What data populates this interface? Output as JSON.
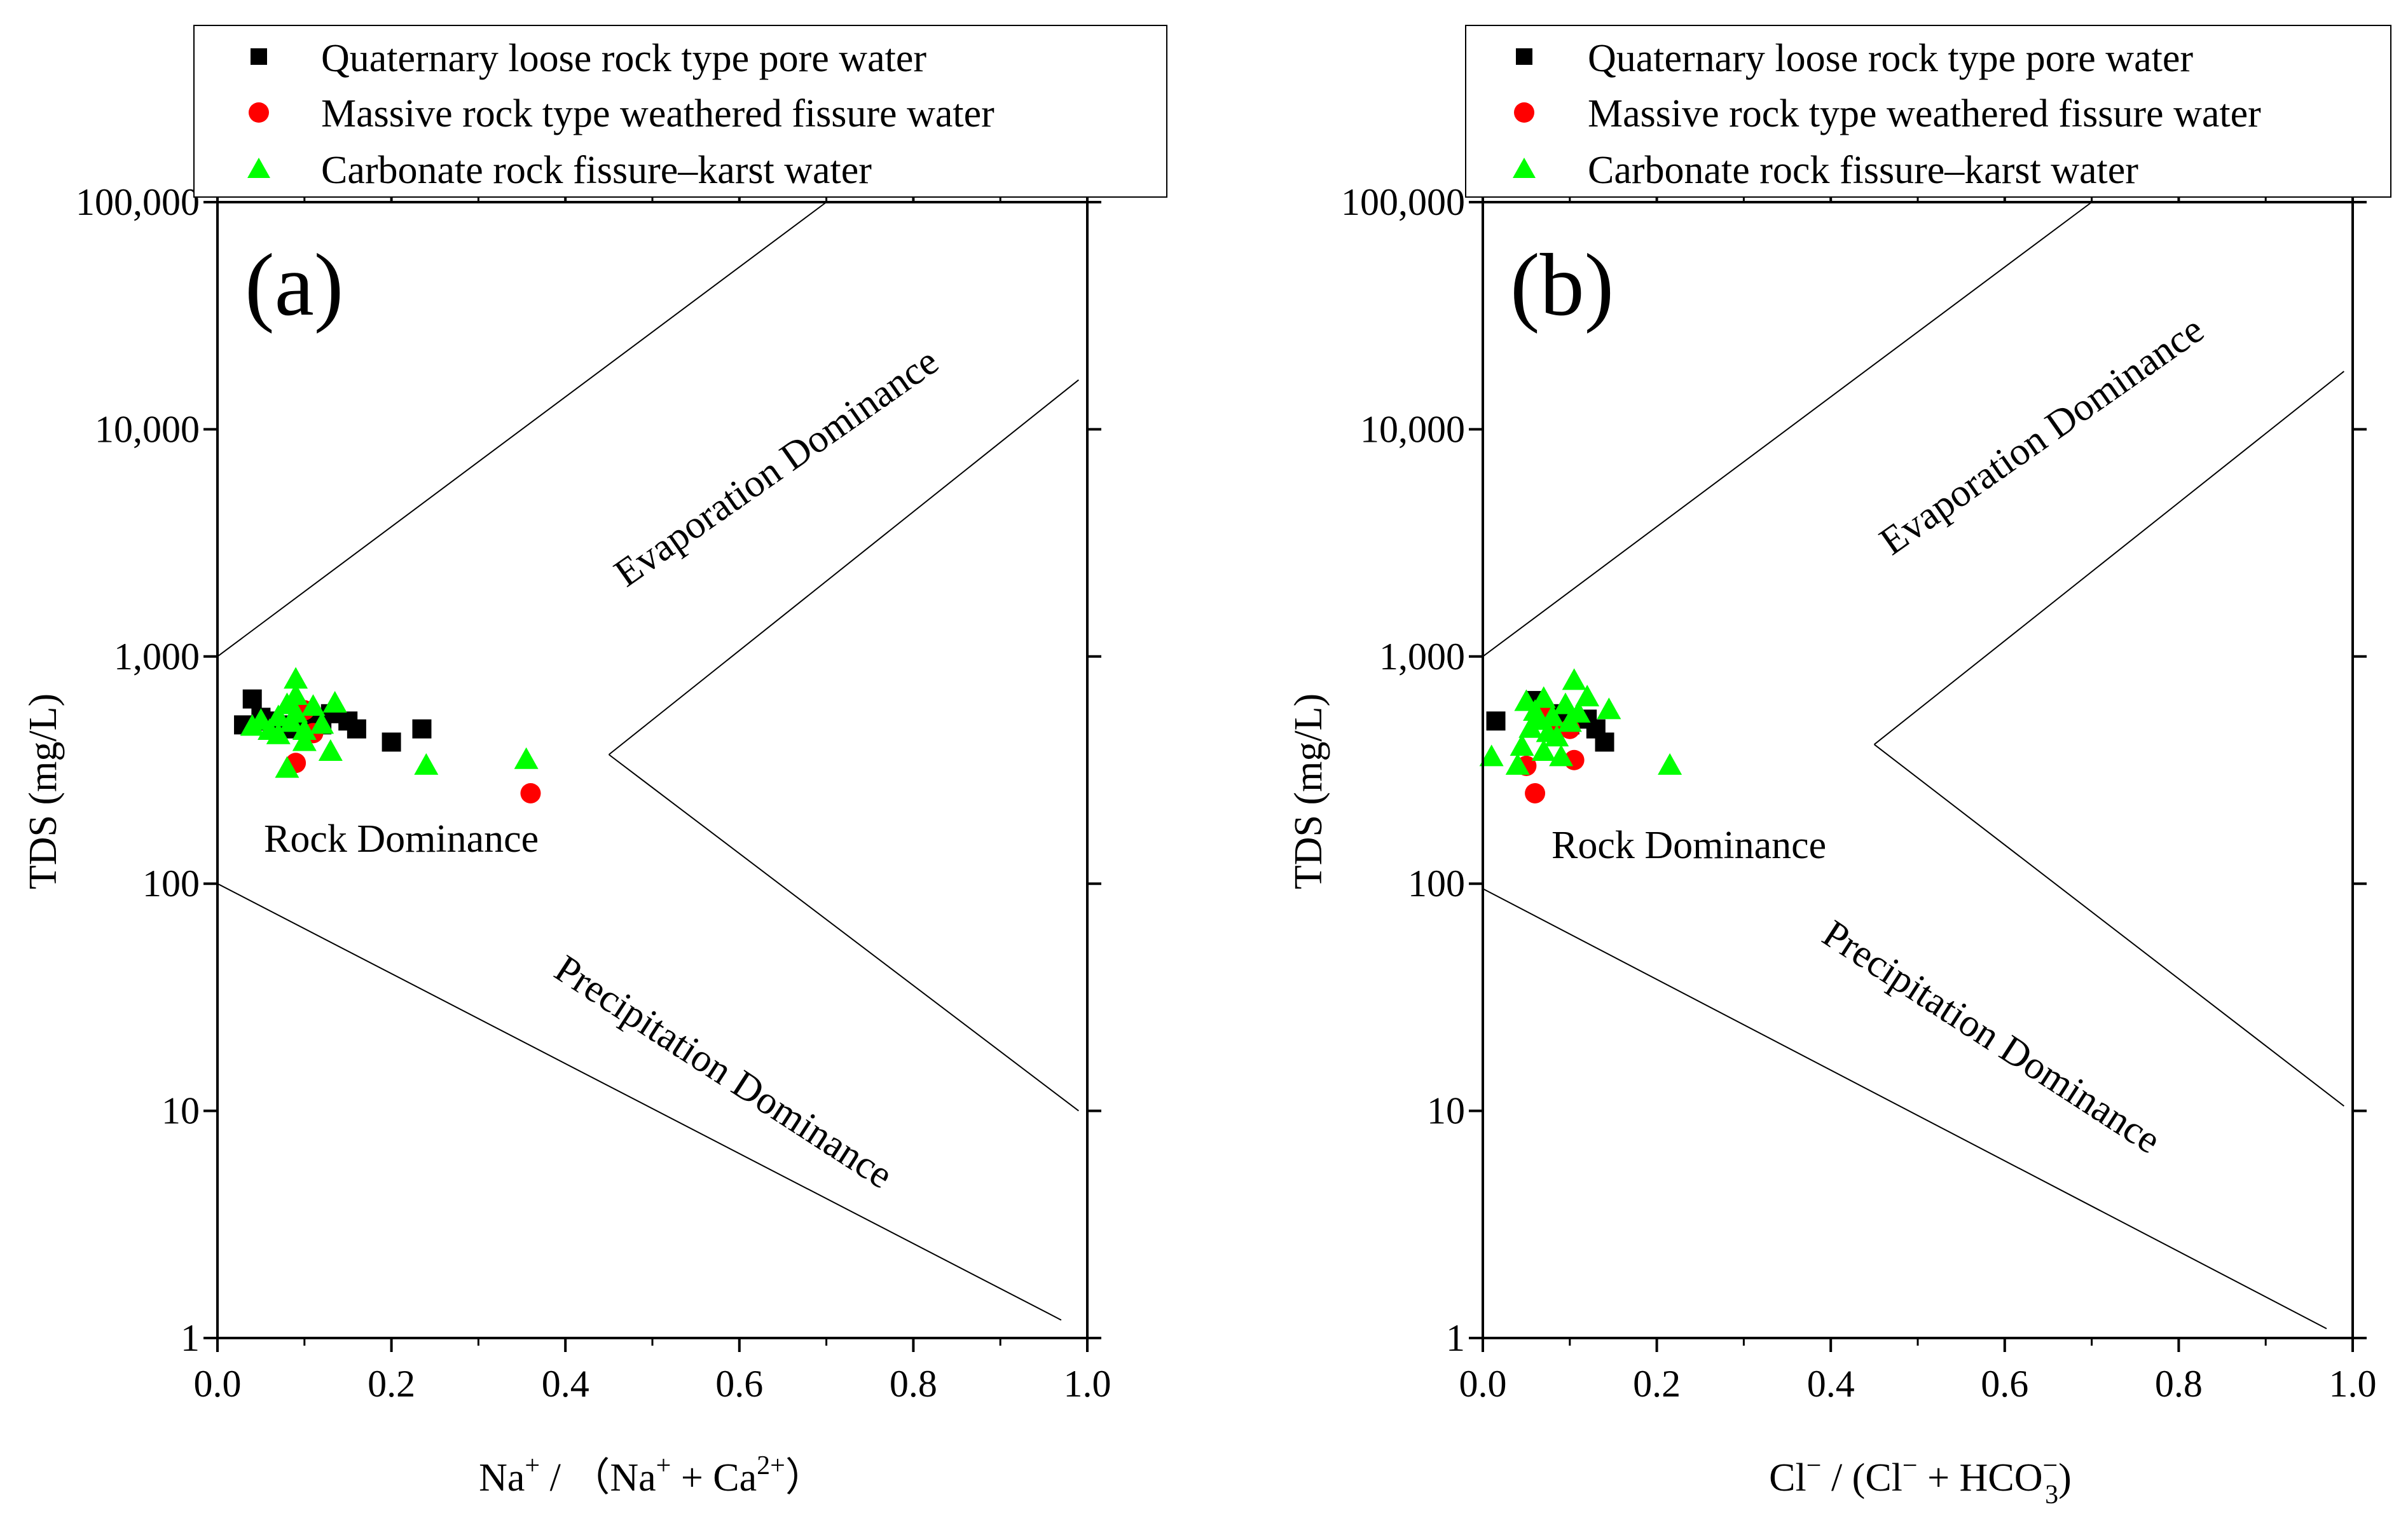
{
  "legend": {
    "items": [
      {
        "label": "Quaternary loose rock type pore water",
        "marker": "square",
        "color": "#000000"
      },
      {
        "label": "Massive rock type weathered fissure water",
        "marker": "circle",
        "color": "#ff0000"
      },
      {
        "label": "Carbonate rock fissure–karst water",
        "marker": "triangle",
        "color": "#00ff00"
      }
    ]
  },
  "chart_data": [
    {
      "type": "scatter",
      "panel_label": "(a)",
      "xlabel": {
        "pre": "Na",
        "pre_sup": "+",
        "mid": " / （Na",
        "mid_sup": "+",
        "post": " + Ca",
        "post_sup": "2+",
        "end": "）"
      },
      "ylabel": "TDS (mg/L)",
      "yscale": "log",
      "xlim": [
        0,
        1.0
      ],
      "ylim": [
        1,
        100000
      ],
      "xticks": [
        "0.0",
        "0.2",
        "0.4",
        "0.6",
        "0.8",
        "1.0"
      ],
      "yticks": [
        "1",
        "10",
        "100",
        "1,000",
        "10,000",
        "100,000"
      ],
      "regions": [
        "Evaporation Dominance",
        "Rock Dominance",
        "Precipitation Dominance"
      ],
      "boundary_lines": [
        [
          [
            0.0,
            1000
          ],
          [
            0.7,
            100000
          ]
        ],
        [
          [
            0.0,
            100
          ],
          [
            0.97,
            1.2
          ]
        ],
        [
          [
            0.45,
            370
          ],
          [
            0.99,
            16500
          ]
        ],
        [
          [
            0.45,
            370
          ],
          [
            0.99,
            10
          ]
        ]
      ],
      "series": [
        {
          "name": "Quaternary loose rock type pore water",
          "points": [
            [
              0.03,
              500
            ],
            [
              0.04,
              650
            ],
            [
              0.05,
              540
            ],
            [
              0.06,
              520
            ],
            [
              0.07,
              500
            ],
            [
              0.08,
              480
            ],
            [
              0.1,
              540
            ],
            [
              0.12,
              500
            ],
            [
              0.13,
              560
            ],
            [
              0.15,
              520
            ],
            [
              0.16,
              480
            ],
            [
              0.2,
              420
            ],
            [
              0.235,
              480
            ]
          ]
        },
        {
          "name": "Massive rock type weathered fissure water",
          "points": [
            [
              0.09,
              340
            ],
            [
              0.1,
              580
            ],
            [
              0.11,
              460
            ],
            [
              0.36,
              250
            ]
          ]
        },
        {
          "name": "Carbonate rock fissure–karst water",
          "points": [
            [
              0.04,
              490
            ],
            [
              0.05,
              520
            ],
            [
              0.06,
              470
            ],
            [
              0.07,
              540
            ],
            [
              0.07,
              450
            ],
            [
              0.08,
              610
            ],
            [
              0.08,
              320
            ],
            [
              0.085,
              510
            ],
            [
              0.09,
              790
            ],
            [
              0.09,
              670
            ],
            [
              0.09,
              560
            ],
            [
              0.1,
              470
            ],
            [
              0.1,
              420
            ],
            [
              0.11,
              600
            ],
            [
              0.12,
              500
            ],
            [
              0.13,
              380
            ],
            [
              0.135,
              620
            ],
            [
              0.24,
              330
            ],
            [
              0.355,
              350
            ]
          ]
        }
      ]
    },
    {
      "type": "scatter",
      "panel_label": "(b)",
      "xlabel": {
        "pre": "Cl",
        "pre_sup": "−",
        "mid": " / (Cl",
        "mid_sup": "−",
        "post": " + HCO",
        "post_sup": "−",
        "post_sub": "3",
        "end": ")"
      },
      "ylabel": "TDS (mg/L)",
      "yscale": "log",
      "xlim": [
        0,
        1.0
      ],
      "ylim": [
        1,
        100000
      ],
      "xticks": [
        "0.0",
        "0.2",
        "0.4",
        "0.6",
        "0.8",
        "1.0"
      ],
      "yticks": [
        "1",
        "10",
        "100",
        "1,000",
        "10,000",
        "100,000"
      ],
      "regions": [
        "Evaporation Dominance",
        "Rock Dominance",
        "Precipitation Dominance"
      ],
      "boundary_lines": [
        [
          [
            0.0,
            1000
          ],
          [
            0.7,
            100000
          ]
        ],
        [
          [
            0.0,
            95
          ],
          [
            0.97,
            1.1
          ]
        ],
        [
          [
            0.45,
            410
          ],
          [
            0.99,
            18000
          ]
        ],
        [
          [
            0.45,
            410
          ],
          [
            0.99,
            10.5
          ]
        ]
      ],
      "series": [
        {
          "name": "Quaternary loose rock type pore water",
          "points": [
            [
              0.015,
              520
            ],
            [
              0.06,
              640
            ],
            [
              0.07,
              560
            ],
            [
              0.08,
              520
            ],
            [
              0.09,
              560
            ],
            [
              0.1,
              500
            ],
            [
              0.12,
              530
            ],
            [
              0.13,
              480
            ],
            [
              0.14,
              420
            ]
          ]
        },
        {
          "name": "Massive rock type weathered fissure water",
          "points": [
            [
              0.05,
              330
            ],
            [
              0.06,
              250
            ],
            [
              0.07,
              580
            ],
            [
              0.08,
              460
            ],
            [
              0.1,
              480
            ],
            [
              0.105,
              350
            ]
          ]
        },
        {
          "name": "Carbonate rock fissure–karst water",
          "points": [
            [
              0.01,
              360
            ],
            [
              0.04,
              330
            ],
            [
              0.045,
              400
            ],
            [
              0.05,
              630
            ],
            [
              0.055,
              480
            ],
            [
              0.06,
              570
            ],
            [
              0.065,
              520
            ],
            [
              0.07,
              650
            ],
            [
              0.07,
              380
            ],
            [
              0.075,
              460
            ],
            [
              0.08,
              540
            ],
            [
              0.085,
              440
            ],
            [
              0.09,
              360
            ],
            [
              0.095,
              610
            ],
            [
              0.1,
              510
            ],
            [
              0.105,
              780
            ],
            [
              0.11,
              560
            ],
            [
              0.12,
              660
            ],
            [
              0.145,
              580
            ],
            [
              0.215,
              330
            ]
          ]
        }
      ]
    }
  ]
}
